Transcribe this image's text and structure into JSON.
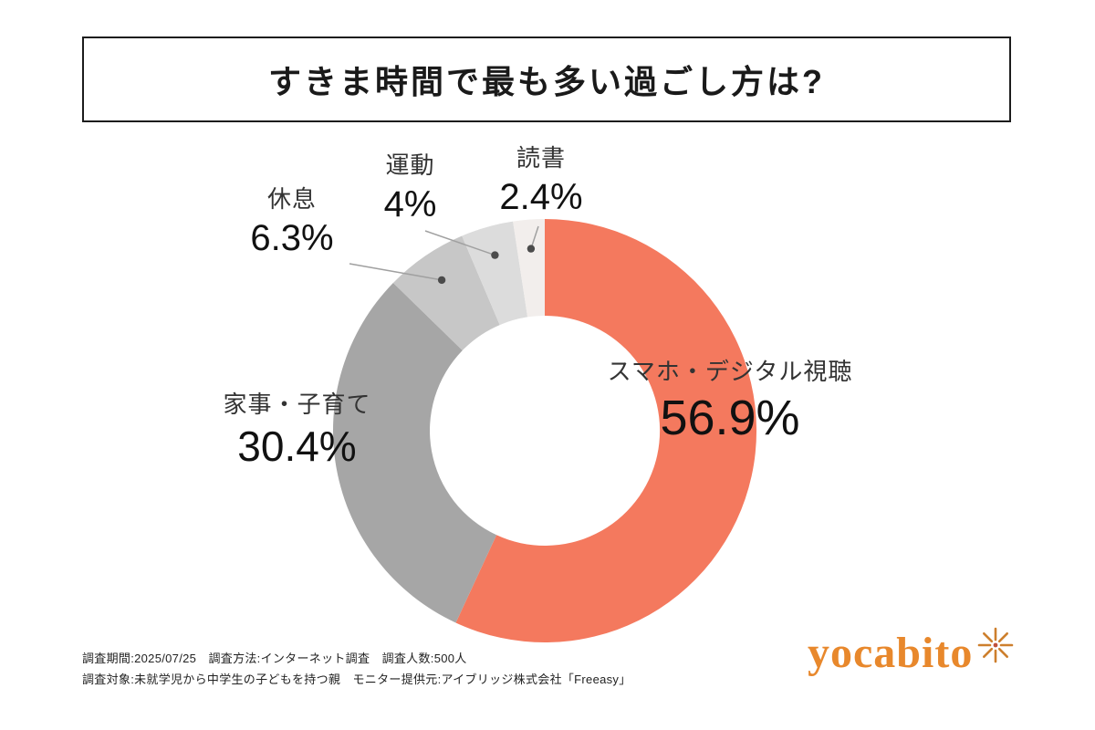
{
  "title": "すきま時間で最も多い過ごし方は?",
  "chart_data": {
    "type": "pie",
    "subtype": "donut",
    "title": "すきま時間で最も多い過ごし方は?",
    "categories": [
      "スマホ・デジタル視聴",
      "家事・子育て",
      "休息",
      "運動",
      "読書"
    ],
    "values": [
      56.9,
      30.4,
      6.3,
      4,
      2.4
    ],
    "value_labels": [
      "56.9%",
      "30.4%",
      "6.3%",
      "4%",
      "2.4%"
    ],
    "colors": [
      "#f4795e",
      "#a6a6a6",
      "#c7c7c7",
      "#dcdcdc",
      "#f2eeec"
    ],
    "start_angle_deg": 0,
    "direction": "clockwise",
    "legend": "none",
    "labels_position": "outside"
  },
  "footer": {
    "line1": "調査期間:2025/07/25　調査方法:インターネット調査　調査人数:500人",
    "line2": "調査対象:未就学児から中学生の子どもを持つ親　モニター提供元:アイブリッジ株式会社「Freeasy」"
  },
  "logo": {
    "text": "yocabito",
    "color": "#e8882c",
    "icon": "sparkle"
  }
}
